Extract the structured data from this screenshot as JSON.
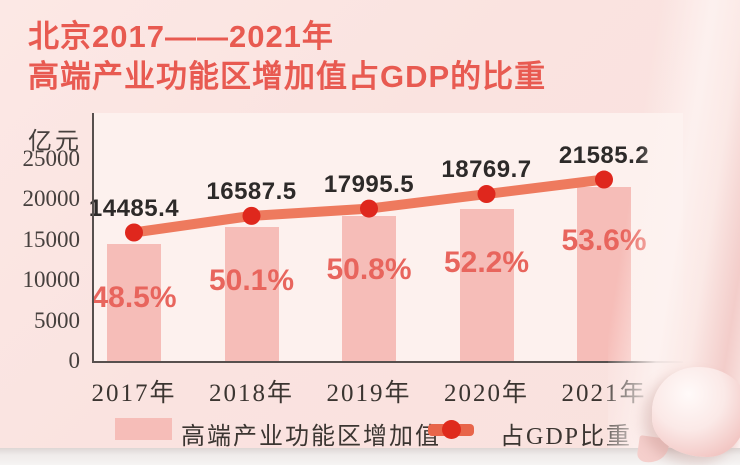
{
  "page": {
    "title_line1": "北京2017——2021年",
    "title_line2": "高端产业功能区增加值占GDP的比重"
  },
  "chart_data": {
    "type": "bar",
    "combo": "bar+line",
    "title": "北京2017——2021年高端产业功能区增加值占GDP的比重",
    "ylabel": "亿元",
    "ylim": [
      0,
      25000
    ],
    "y_ticks": [
      25000,
      20000,
      15000,
      10000,
      5000,
      0
    ],
    "grid": "off",
    "legend_position": "bottom",
    "categories": [
      "2017年",
      "2018年",
      "2019年",
      "2020年",
      "2021年"
    ],
    "series": [
      {
        "name": "高端产业功能区增加值",
        "type": "bar",
        "values": [
          14485.4,
          16587.5,
          17995.5,
          18769.7,
          21585.2
        ],
        "value_labels": [
          "14485.4",
          "16587.5",
          "17995.5",
          "18769.7",
          "21585.2"
        ]
      },
      {
        "name": "占GDP比重",
        "type": "line",
        "values_pct": [
          48.5,
          50.1,
          50.8,
          52.2,
          53.6
        ],
        "pct_labels": [
          "48.5%",
          "50.1%",
          "50.8%",
          "52.2%",
          "53.6%"
        ]
      }
    ]
  },
  "legend": {
    "bar_label": "高端产业功能区增加值",
    "line_label": "占GDP比重"
  },
  "colors": {
    "paper_bg": "#fae3e0",
    "plot_bg": "#fdf1ee",
    "bar": "#f6bdb8",
    "line": "#ee7a5e",
    "dot": "#df271d",
    "title": "#e85a51",
    "pct_text": "#e8655d",
    "value_text": "#2d2a29",
    "axis_text": "#46403e",
    "axis_line": "#57504e"
  }
}
